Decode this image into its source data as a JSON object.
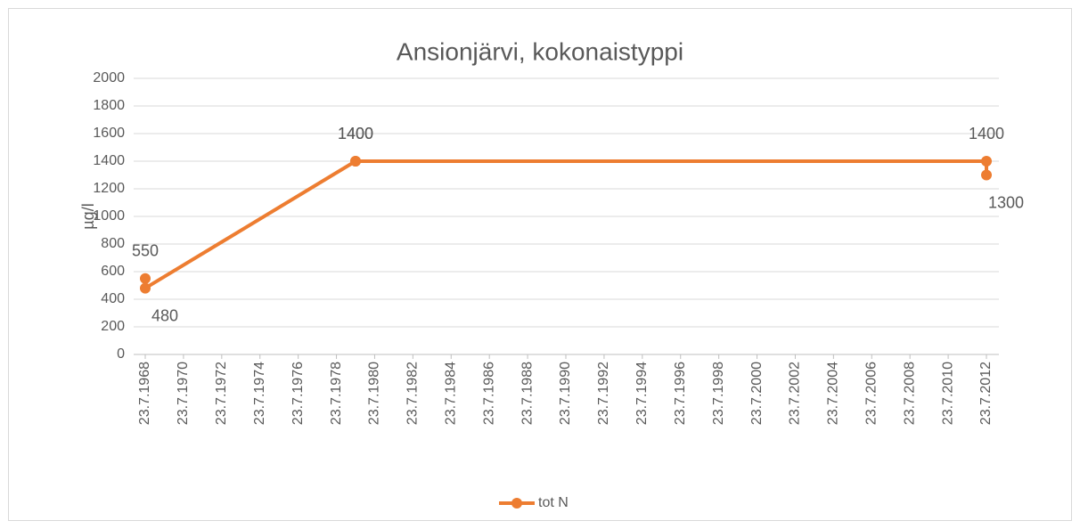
{
  "chart_data": {
    "type": "line",
    "title": "Ansionjärvi, kokonaistyppi",
    "y_label": "µg/l",
    "x": [
      1968.56,
      1968.56,
      1979.56,
      1979.56,
      2012.56,
      2012.56
    ],
    "series": [
      {
        "name": "tot N",
        "color": "#ed7d31",
        "values": [
          550,
          480,
          1400,
          1400,
          1400,
          1300
        ]
      }
    ],
    "xlim": [
      1968.56,
      2012.56
    ],
    "xticks": [
      {
        "value": 1968.56,
        "label": "23.7.1968"
      },
      {
        "value": 1970.56,
        "label": "23.7.1970"
      },
      {
        "value": 1972.56,
        "label": "23.7.1972"
      },
      {
        "value": 1974.56,
        "label": "23.7.1974"
      },
      {
        "value": 1976.56,
        "label": "23.7.1976"
      },
      {
        "value": 1978.56,
        "label": "23.7.1978"
      },
      {
        "value": 1980.56,
        "label": "23.7.1980"
      },
      {
        "value": 1982.56,
        "label": "23.7.1982"
      },
      {
        "value": 1984.56,
        "label": "23.7.1984"
      },
      {
        "value": 1986.56,
        "label": "23.7.1986"
      },
      {
        "value": 1988.56,
        "label": "23.7.1988"
      },
      {
        "value": 1990.56,
        "label": "23.7.1990"
      },
      {
        "value": 1992.56,
        "label": "23.7.1992"
      },
      {
        "value": 1994.56,
        "label": "23.7.1994"
      },
      {
        "value": 1996.56,
        "label": "23.7.1996"
      },
      {
        "value": 1998.56,
        "label": "23.7.1998"
      },
      {
        "value": 2000.56,
        "label": "23.7.2000"
      },
      {
        "value": 2002.56,
        "label": "23.7.2002"
      },
      {
        "value": 2004.56,
        "label": "23.7.2004"
      },
      {
        "value": 2006.56,
        "label": "23.7.2006"
      },
      {
        "value": 2008.56,
        "label": "23.7.2008"
      },
      {
        "value": 2010.56,
        "label": "23.7.2010"
      },
      {
        "value": 2012.56,
        "label": "23.7.2012"
      }
    ],
    "ylim": [
      0,
      2000
    ],
    "yticks": [
      0,
      200,
      400,
      600,
      800,
      1000,
      1200,
      1400,
      1600,
      1800,
      2000
    ],
    "grid": true,
    "legend": "bottom"
  }
}
